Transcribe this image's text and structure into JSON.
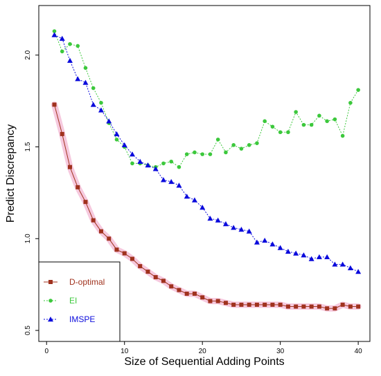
{
  "chart_data": {
    "type": "line",
    "title": "",
    "xlabel": "Size of Sequential Adding Points",
    "ylabel": "Predict Discrepancy",
    "xlim": [
      -1,
      41.5
    ],
    "ylim": [
      0.44,
      2.27
    ],
    "xticks": [
      0,
      10,
      20,
      30,
      40
    ],
    "yticks": [
      0.5,
      1.0,
      1.5,
      2.0
    ],
    "ytick_labels": [
      "0.5",
      "1.0",
      "1.5",
      "2.0"
    ],
    "grid": false,
    "legend_position": "bottom-left",
    "x": [
      1,
      2,
      3,
      4,
      5,
      6,
      7,
      8,
      9,
      10,
      11,
      12,
      13,
      14,
      15,
      16,
      17,
      18,
      19,
      20,
      21,
      22,
      23,
      24,
      25,
      26,
      27,
      28,
      29,
      30,
      31,
      32,
      33,
      34,
      35,
      36,
      37,
      38,
      39,
      40
    ],
    "series": [
      {
        "name": "D-optimal",
        "marker": "square",
        "color": "#a0321e",
        "line_style": "solid",
        "values": [
          1.73,
          1.57,
          1.39,
          1.28,
          1.2,
          1.1,
          1.04,
          1.0,
          0.94,
          0.92,
          0.89,
          0.85,
          0.82,
          0.79,
          0.77,
          0.74,
          0.72,
          0.7,
          0.7,
          0.68,
          0.66,
          0.66,
          0.65,
          0.64,
          0.64,
          0.64,
          0.64,
          0.64,
          0.64,
          0.64,
          0.63,
          0.63,
          0.63,
          0.63,
          0.63,
          0.62,
          0.62,
          0.64,
          0.63,
          0.63
        ]
      },
      {
        "name": "EI",
        "marker": "circle",
        "color": "#3cc83c",
        "line_style": "dotted",
        "values": [
          2.13,
          2.02,
          2.06,
          2.05,
          1.93,
          1.82,
          1.74,
          1.63,
          1.54,
          1.5,
          1.41,
          1.41,
          1.4,
          1.39,
          1.41,
          1.42,
          1.39,
          1.46,
          1.47,
          1.46,
          1.46,
          1.54,
          1.47,
          1.51,
          1.49,
          1.51,
          1.52,
          1.64,
          1.61,
          1.58,
          1.58,
          1.69,
          1.62,
          1.62,
          1.67,
          1.64,
          1.65,
          1.56,
          1.74,
          1.81
        ]
      },
      {
        "name": "IMSPE",
        "marker": "triangle",
        "color": "#0a0adc",
        "line_style": "dotted",
        "values": [
          2.11,
          2.09,
          1.97,
          1.87,
          1.85,
          1.73,
          1.7,
          1.64,
          1.57,
          1.51,
          1.46,
          1.42,
          1.4,
          1.38,
          1.32,
          1.31,
          1.29,
          1.23,
          1.21,
          1.17,
          1.11,
          1.1,
          1.08,
          1.06,
          1.05,
          1.04,
          0.98,
          0.99,
          0.97,
          0.95,
          0.93,
          0.92,
          0.91,
          0.89,
          0.9,
          0.9,
          0.86,
          0.86,
          0.84,
          0.82
        ]
      }
    ]
  }
}
